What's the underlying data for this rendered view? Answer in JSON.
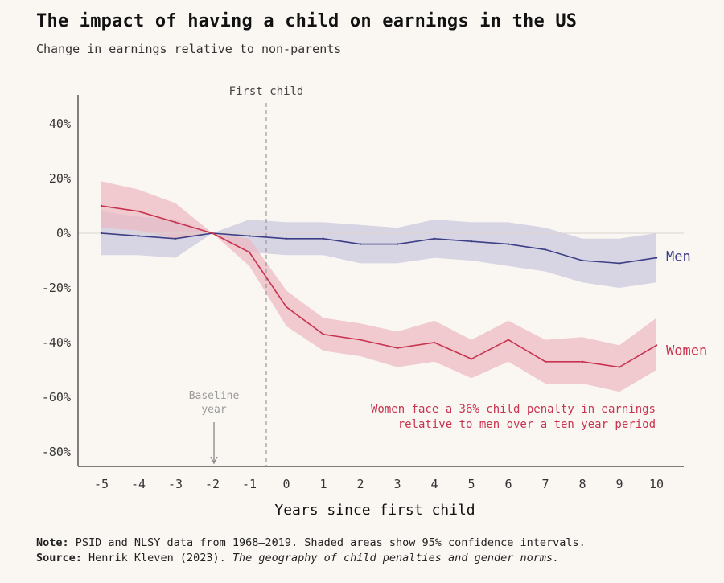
{
  "title": "The impact of having a child on earnings in the US",
  "subtitle": "Change in earnings relative to non-parents",
  "chart_data": {
    "type": "line",
    "xlabel": "Years since first child",
    "ylabel": "",
    "x": [
      -5,
      -4,
      -3,
      -2,
      -1,
      0,
      1,
      2,
      3,
      4,
      5,
      6,
      7,
      8,
      9,
      10
    ],
    "ylim": [
      -85,
      50
    ],
    "y_ticks": [
      40,
      20,
      0,
      -20,
      -40,
      -60,
      -80
    ],
    "y_tick_labels": [
      "40%",
      "20%",
      "0%",
      "-20%",
      "-40%",
      "-60%",
      "-80%"
    ],
    "x_tick_labels": [
      "-5",
      "-4",
      "-3",
      "-2",
      "-1",
      "0",
      "1",
      "2",
      "3",
      "4",
      "5",
      "6",
      "7",
      "8",
      "9",
      "10"
    ],
    "series": [
      {
        "name": "Men",
        "color": "#3d3f86",
        "band_color": "#c9c6dc",
        "values": [
          0,
          -1,
          -2,
          0,
          -1,
          -2,
          -2,
          -4,
          -4,
          -2,
          -3,
          -4,
          -6,
          -10,
          -11,
          -9
        ],
        "lower": [
          -8,
          -8,
          -9,
          0,
          -7,
          -8,
          -8,
          -11,
          -11,
          -9,
          -10,
          -12,
          -14,
          -18,
          -20,
          -18
        ],
        "upper": [
          8,
          6,
          5,
          0,
          5,
          4,
          4,
          3,
          2,
          5,
          4,
          4,
          2,
          -2,
          -2,
          0
        ]
      },
      {
        "name": "Women",
        "color": "#c8334f",
        "band_color": "#ebb8c1",
        "values": [
          10,
          8,
          4,
          0,
          -7,
          -27,
          -37,
          -39,
          -42,
          -40,
          -46,
          -39,
          -47,
          -47,
          -49,
          -41
        ],
        "lower": [
          2,
          1,
          -2,
          0,
          -12,
          -34,
          -43,
          -45,
          -49,
          -47,
          -53,
          -47,
          -55,
          -55,
          -58,
          -50
        ],
        "upper": [
          19,
          16,
          11,
          0,
          -2,
          -21,
          -31,
          -33,
          -36,
          -32,
          -39,
          -32,
          -39,
          -38,
          -41,
          -31
        ]
      }
    ],
    "annotations": {
      "first_child": "First child",
      "baseline_line1": "Baseline",
      "baseline_line2": "year",
      "penalty_line1": "Women face a 36% child penalty in earnings",
      "penalty_line2": "relative to men over a ten year period"
    }
  },
  "footer": {
    "note_label": "Note:",
    "note_text": " PSID and NLSY data from 1968–2019. Shaded areas show 95% confidence intervals.",
    "source_label": "Source:",
    "source_text": " Henrik Kleven (2023). ",
    "source_title": "The geography of child penalties and gender norms."
  }
}
